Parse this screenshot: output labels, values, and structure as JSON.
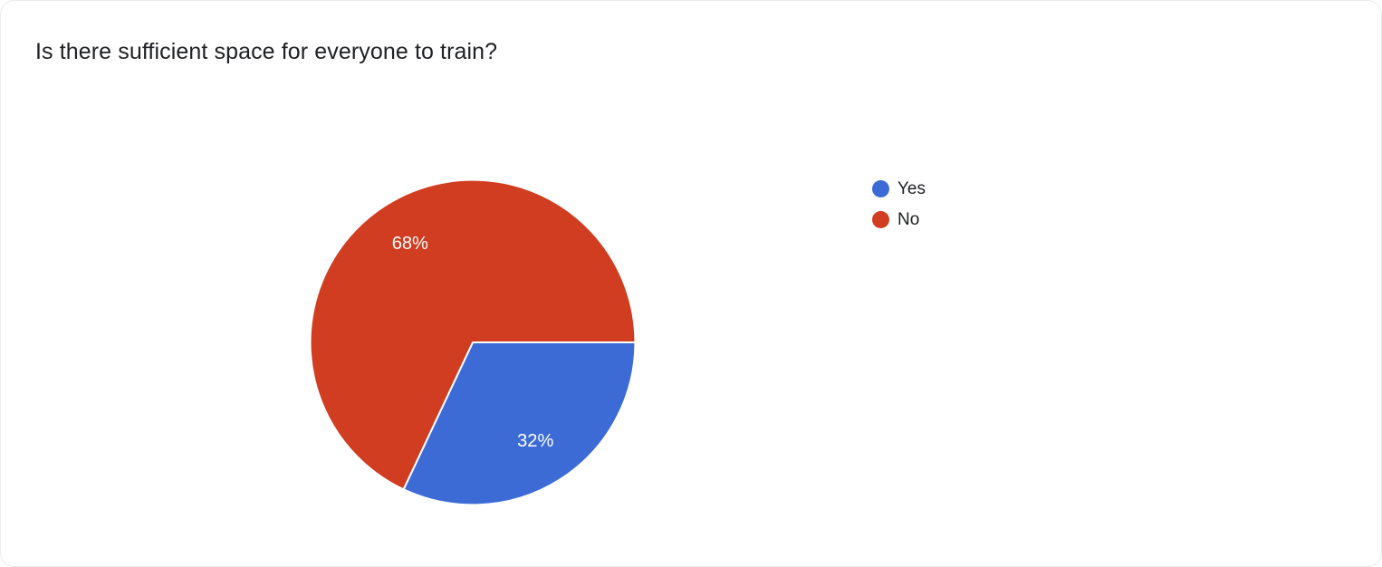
{
  "chart_data": {
    "type": "pie",
    "title": "Is there sufficient space for everyone to train?",
    "categories": [
      "Yes",
      "No"
    ],
    "values": [
      32,
      68
    ],
    "slice_labels": [
      "32%",
      "68%"
    ],
    "colors": [
      "#3c6bd6",
      "#d03d21"
    ],
    "legend_position": "right",
    "start_angle_deg": 0,
    "label_radius": 72,
    "grid": false
  }
}
